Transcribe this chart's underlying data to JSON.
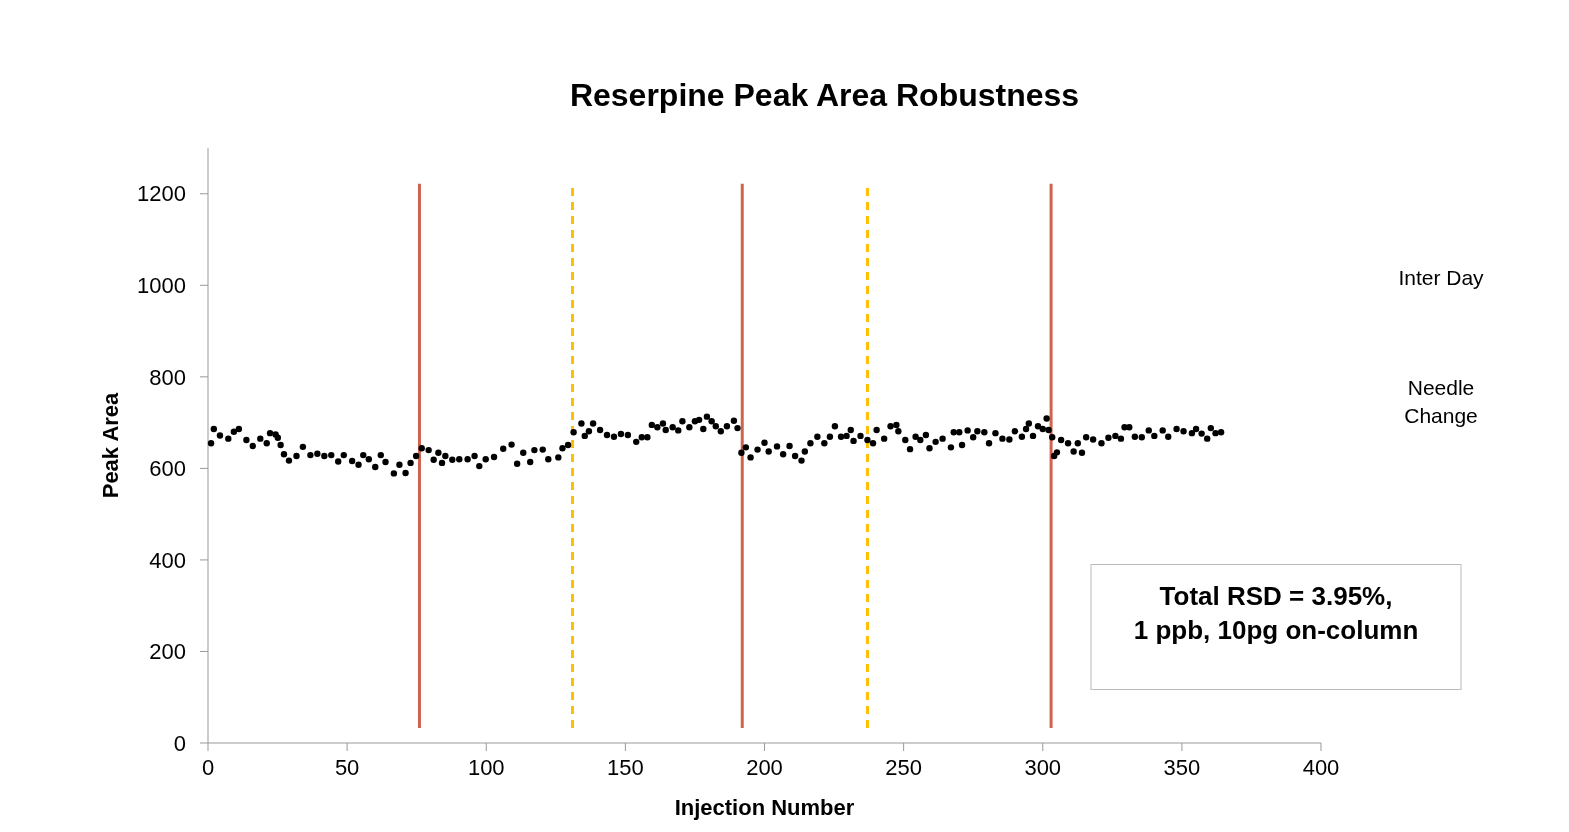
{
  "chart_data": {
    "type": "scatter",
    "title": "Reserpine Peak Area Robustness",
    "xlabel": "Injection Number",
    "ylabel": "Peak Area",
    "xlim": [
      0,
      400
    ],
    "xticks": [
      0,
      50,
      100,
      150,
      200,
      250,
      300,
      350,
      400
    ],
    "ylim": [
      0,
      1300
    ],
    "yticks": [
      0,
      200,
      400,
      600,
      800,
      1000,
      1200
    ],
    "grid": false,
    "marker": "circle",
    "series": [
      {
        "color": "#000000",
        "x": [
          1.1,
          2.1,
          4.3,
          7.3,
          9.3,
          11.1,
          13.8,
          16.1,
          18.8,
          21.1,
          22.3,
          24.3,
          25.1,
          26.1,
          27.3,
          29.1,
          31.8,
          34.1,
          36.8,
          39.3,
          41.8,
          44.3,
          46.8,
          48.8,
          51.8,
          54.1,
          55.8,
          57.8,
          60.1,
          62.1,
          63.8,
          66.8,
          68.8,
          71,
          72.8,
          74.8,
          76.8,
          79.3,
          81.1,
          82.8,
          84.1,
          85.3,
          87.8,
          90.3,
          93.3,
          95.8,
          97.5,
          99.8,
          102.8,
          106.1,
          109.1,
          111.1,
          113.3,
          115.8,
          117.3,
          120.3,
          122.3,
          125.9,
          127.4,
          129.4,
          131.4,
          134.2,
          135.4,
          136.9,
          138.4,
          140.9,
          143.4,
          145.9,
          148.4,
          150.9,
          153.9,
          155.9,
          157.9,
          159.5,
          161.5,
          163.5,
          164.5,
          167,
          169,
          170.5,
          173,
          175,
          176.5,
          178,
          179.3,
          181,
          182.5,
          184.3,
          186.5,
          189,
          190.3,
          191.7,
          193.3,
          195,
          197.5,
          200,
          201.5,
          204.5,
          206.7,
          209,
          211,
          213.3,
          214.5,
          216.5,
          219,
          221.5,
          223.5,
          225.3,
          227.5,
          229.5,
          231,
          232,
          234.5,
          237,
          239,
          240.3,
          243,
          245.3,
          247.4,
          248.1,
          250.6,
          252.3,
          254.3,
          256,
          258,
          259.3,
          261.5,
          264,
          267,
          268,
          270,
          271,
          273,
          275,
          276.5,
          279,
          280.7,
          283,
          285.5,
          288,
          290,
          292.5,
          294,
          295,
          296.5,
          298.3,
          300,
          301.4,
          302.1,
          303.4,
          304.1,
          305.1,
          306.6,
          309.1,
          311.1,
          312.6,
          314.1,
          315.6,
          318.1,
          321.1,
          323.6,
          326.1,
          328.1,
          329.4,
          331.1,
          333.1,
          335.6,
          338.1,
          340.1,
          343.1,
          345.1,
          348.1,
          350.6,
          353.6,
          355.1,
          357.1,
          359.1,
          360.4,
          362.1,
          364.1
        ],
        "values": [
          655,
          686,
          672,
          665,
          680,
          686,
          662,
          649,
          665,
          655,
          677,
          674,
          667,
          651,
          631,
          617,
          627,
          647,
          629,
          632,
          627,
          629,
          615,
          629,
          616,
          608,
          629,
          620,
          603,
          629,
          614,
          589,
          608,
          590,
          612,
          627,
          644,
          640,
          619,
          634,
          612,
          627,
          619,
          620,
          620,
          627,
          605,
          620,
          625,
          643,
          652,
          610,
          634,
          614,
          640,
          641,
          620,
          624,
          644,
          651,
          679,
          698,
          671,
          681,
          698,
          684,
          673,
          669,
          675,
          673,
          658,
          668,
          668,
          695,
          690,
          698,
          684,
          690,
          683,
          703,
          690,
          703,
          706,
          686,
          713,
          703,
          692,
          681,
          692,
          704,
          688,
          634,
          646,
          624,
          641,
          656,
          637,
          648,
          631,
          649,
          627,
          617,
          637,
          655,
          669,
          655,
          669,
          692,
          669,
          671,
          684,
          660,
          671,
          662,
          655,
          684,
          665,
          692,
          695,
          681,
          662,
          642,
          669,
          662,
          673,
          644,
          658,
          665,
          646,
          679,
          679,
          651,
          683,
          668,
          681,
          679,
          655,
          677,
          665,
          663,
          681,
          669,
          686,
          698,
          671,
          692,
          686,
          709,
          684,
          668,
          627,
          635,
          662,
          655,
          637,
          655,
          634,
          668,
          663,
          655,
          667,
          671,
          665,
          690,
          690,
          669,
          668,
          683,
          671,
          683,
          669,
          686,
          681,
          677,
          686,
          676,
          665,
          688,
          677,
          679
        ]
      }
    ],
    "ref_lines": [
      {
        "axis": "x",
        "value": 76,
        "color": "#d0634f",
        "line_style": "solid"
      },
      {
        "axis": "x",
        "value": 131,
        "color": "#ffc000",
        "line_style": "dashed"
      },
      {
        "axis": "x",
        "value": 192,
        "color": "#d0634f",
        "line_style": "solid"
      },
      {
        "axis": "x",
        "value": 237,
        "color": "#ffc000",
        "line_style": "dashed"
      },
      {
        "axis": "x",
        "value": 303,
        "color": "#d0634f",
        "line_style": "solid"
      }
    ],
    "annotations": [
      "Inter Day",
      "Needle\nChange",
      "Total RSD = 3.95%,\n1 ppb, 10pg on-column"
    ]
  }
}
